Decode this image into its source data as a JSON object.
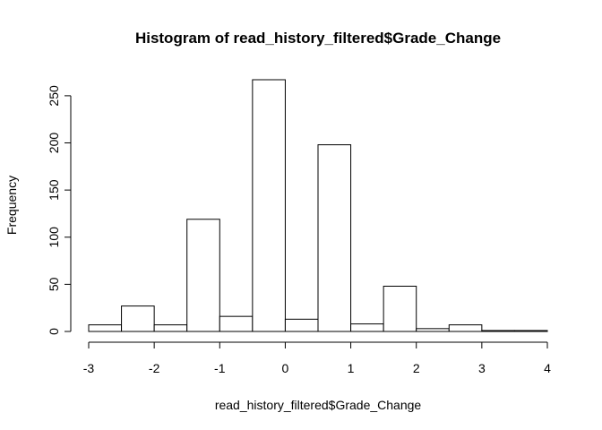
{
  "chart_data": {
    "type": "bar",
    "title": "Histogram of read_history_filtered$Grade_Change",
    "xlabel": "read_history_filtered$Grade_Change",
    "ylabel": "Frequency",
    "bin_edges": [
      -3,
      -2.5,
      -2,
      -1.5,
      -1,
      -0.5,
      0,
      0.5,
      1,
      1.5,
      2,
      2.5,
      3,
      3.5,
      4
    ],
    "values": [
      7,
      27,
      7,
      119,
      16,
      267,
      13,
      198,
      8,
      48,
      3,
      7,
      1,
      1
    ],
    "xlim": [
      -3,
      4
    ],
    "ylim": [
      0,
      267
    ],
    "x_ticks": [
      -3,
      -2,
      -1,
      0,
      1,
      2,
      3,
      4
    ],
    "y_ticks": [
      0,
      50,
      100,
      150,
      200,
      250
    ],
    "grid": false
  }
}
